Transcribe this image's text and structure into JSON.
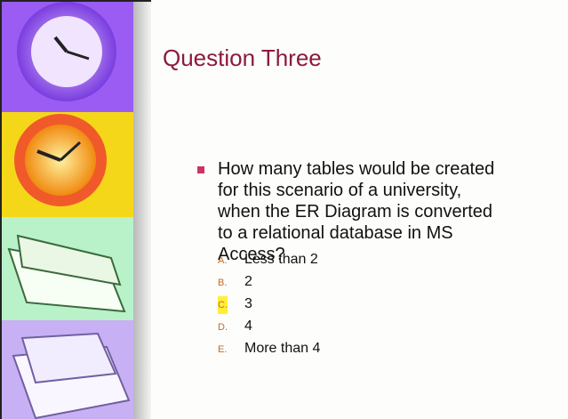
{
  "slide": {
    "title": "Question Three",
    "question_lines": [
      "How many tables would be created",
      "for this scenario of a university,",
      "when the ER Diagram is converted",
      "to a relational database in MS",
      "Access?"
    ],
    "options": [
      {
        "letter": "A.",
        "text": "Less than 2"
      },
      {
        "letter": "B.",
        "text": "2"
      },
      {
        "letter": "C.",
        "text": "3",
        "highlighted": true
      },
      {
        "letter": "D.",
        "text": "4"
      },
      {
        "letter": "E.",
        "text": "More than 4"
      }
    ]
  }
}
